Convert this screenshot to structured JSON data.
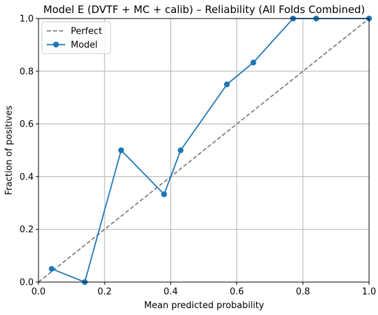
{
  "chart_data": {
    "type": "line",
    "title": "Model E (DVTF + MC + calib) – Reliability (All Folds Combined)",
    "xlabel": "Mean predicted probability",
    "ylabel": "Fraction of positives",
    "xlim": [
      0.0,
      1.0
    ],
    "ylim": [
      0.0,
      1.0
    ],
    "xticks": [
      "0.0",
      "0.2",
      "0.4",
      "0.6",
      "0.8",
      "1.0"
    ],
    "yticks": [
      "0.0",
      "0.2",
      "0.4",
      "0.6",
      "0.8",
      "1.0"
    ],
    "grid": true,
    "legend_position": "top-left",
    "series": [
      {
        "name": "Perfect",
        "style": "dashed",
        "color": "#808080",
        "x": [
          0.0,
          1.0
        ],
        "y": [
          0.0,
          1.0
        ]
      },
      {
        "name": "Model",
        "style": "solid-markers",
        "color": "#1f77b4",
        "x": [
          0.04,
          0.14,
          0.25,
          0.38,
          0.43,
          0.57,
          0.65,
          0.77,
          0.84,
          1.0
        ],
        "y": [
          0.05,
          0.0,
          0.5,
          0.333,
          0.5,
          0.75,
          0.833,
          1.0,
          1.0,
          1.0
        ]
      }
    ]
  }
}
